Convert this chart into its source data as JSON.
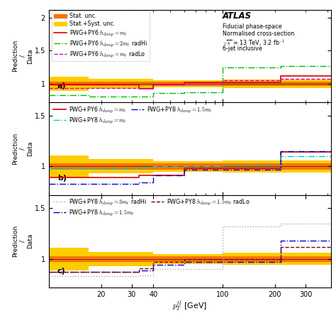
{
  "bin_edges": [
    10,
    17,
    33,
    40,
    60,
    100,
    215,
    260,
    420
  ],
  "stat_lo": [
    0.97,
    0.97,
    0.97,
    0.97,
    0.97,
    0.97,
    0.97,
    0.97
  ],
  "stat_hi": [
    1.03,
    1.03,
    1.03,
    1.03,
    1.03,
    1.03,
    1.03,
    1.03
  ],
  "syst_lo": [
    0.89,
    0.93,
    0.93,
    0.95,
    0.95,
    0.94,
    0.94,
    0.94
  ],
  "syst_hi": [
    1.11,
    1.07,
    1.07,
    1.05,
    1.05,
    1.06,
    1.06,
    1.06
  ],
  "panel_a": {
    "line1": {
      "label": "PWG+PY6 $h_{damp}=m_t$",
      "color": "#dd0000",
      "ls": "-",
      "lw": 1.2,
      "values": [
        0.99,
        0.99,
        0.92,
        0.99,
        1.02,
        1.02,
        1.12,
        1.12
      ]
    },
    "line2": {
      "label": "PWG+PY6 $h_{damp}=2m_t$ radHi",
      "color": "#00bb00",
      "ls": "-.",
      "lw": 1.0,
      "values": [
        0.83,
        0.81,
        0.81,
        0.86,
        0.87,
        1.25,
        1.27,
        1.27
      ]
    },
    "line3": {
      "label": "PWG+PY6 $h_{damp}=m_t$ radLo",
      "color": "#cc00cc",
      "ls": "--",
      "lw": 1.0,
      "values": [
        0.94,
        0.94,
        0.94,
        0.99,
        1.0,
        1.05,
        1.07,
        1.07
      ]
    }
  },
  "panel_b": {
    "line1": {
      "label": "PWG+PY6 $h_{damp}=m_t$",
      "color": "#dd0000",
      "ls": "-",
      "lw": 1.2,
      "values": [
        0.89,
        0.89,
        0.91,
        0.91,
        0.98,
        0.98,
        1.14,
        1.14
      ]
    },
    "line2": {
      "label": "PWG+PY8 $h_{damp}=1.5m_t$",
      "color": "#0000cc",
      "ls": "-.",
      "lw": 1.0,
      "values": [
        0.83,
        0.83,
        0.84,
        0.91,
        0.97,
        0.97,
        1.15,
        1.15
      ]
    },
    "line3": {
      "label": "PWG+PY8 $h_{damp}=m_t$",
      "color": "#00cccc",
      "ls": "-.",
      "lw": 1.0,
      "values": [
        0.98,
        0.98,
        0.99,
        1.0,
        1.0,
        1.01,
        1.1,
        1.1
      ]
    }
  },
  "panel_c": {
    "line1": {
      "label": "PWG+PY8 $h_{damp}=3m_t$ radHi",
      "color": "#aaaaaa",
      "ls": ":",
      "lw": 1.0,
      "values": [
        0.83,
        0.83,
        0.84,
        0.9,
        0.9,
        1.32,
        1.35,
        1.35
      ]
    },
    "line2": {
      "label": "PWG+PY8 $h_{damp}=1.5m_t$",
      "color": "#0000cc",
      "ls": "-.",
      "lw": 1.0,
      "values": [
        0.87,
        0.87,
        0.89,
        0.94,
        0.97,
        0.97,
        1.18,
        1.18
      ]
    },
    "line3": {
      "label": "PWG+PY8 $h_{damp}=1.5m_t$ radLo",
      "color": "#880000",
      "ls": "--",
      "lw": 1.0,
      "values": [
        0.87,
        0.87,
        0.91,
        0.97,
        1.0,
        1.0,
        1.12,
        1.12
      ]
    }
  },
  "xlabel": "$p_T^{t\\bar{t}}$ [GeV]",
  "ylabel": "Prediction\n/\nData",
  "stat_color": "#f97306",
  "syst_color": "#ffcc00",
  "xmin": 10,
  "xmax": 420,
  "xtick_pos": [
    20,
    30,
    40,
    100,
    200,
    300
  ],
  "xtick_labels": [
    "20",
    "30",
    "40",
    "100",
    "200",
    "300"
  ]
}
